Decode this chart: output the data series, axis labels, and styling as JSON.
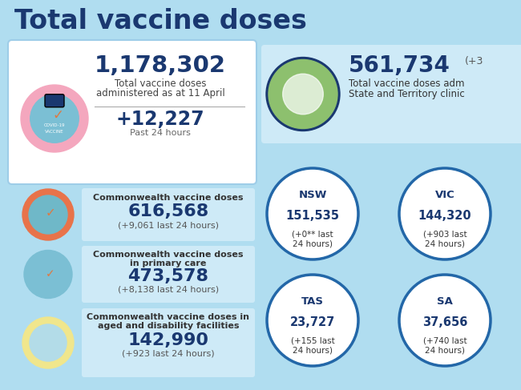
{
  "title": "Total vaccine doses",
  "bg_color": "#b0ddf0",
  "white": "#ffffff",
  "light_blue": "#ceeaf7",
  "dark_blue": "#1a3870",
  "medium_blue": "#2367a8",
  "circle_stroke": "#2367a8",
  "pink_circle": "#f4a7be",
  "orange_circle": "#e8734a",
  "teal_circle": "#7bbfd4",
  "yellow_circle": "#f0e68c",
  "green_circle": "#8dc06e",
  "main_number": "1,178,302",
  "main_label1": "Total vaccine doses",
  "main_label2": "administered as at 11 April",
  "main_change": "+12,227",
  "main_change_label": "Past 24 hours",
  "commonwealth_label": "Commonwealth vaccine doses",
  "commonwealth_number": "616,568",
  "commonwealth_change": "(+9,061 last 24 hours)",
  "primary_label1": "Commonwealth vaccine doses",
  "primary_label2": "in primary care",
  "primary_number": "473,578",
  "primary_change": "(+8,138 last 24 hours)",
  "aged_label1": "Commonwealth vaccine doses in",
  "aged_label2": "aged and disability facilities",
  "aged_number": "142,990",
  "aged_change": "(+923 last 24 hours)",
  "state_total": "561,734",
  "state_total_change": "(+3",
  "state_label1": "Total vaccine doses adm",
  "state_label2": "State and Territory clinic",
  "nsw_label": "NSW",
  "nsw_number": "151,535",
  "nsw_change": "(+0** last\n24 hours)",
  "vic_label": "VIC",
  "vic_number": "144,320",
  "vic_change": "(+903 last\n24 hours)",
  "tas_label": "TAS",
  "tas_number": "23,727",
  "tas_change": "(+155 last\n24 hours)",
  "sa_label": "SA",
  "sa_number": "37,656",
  "sa_change": "(+740 last\n24 hours)"
}
